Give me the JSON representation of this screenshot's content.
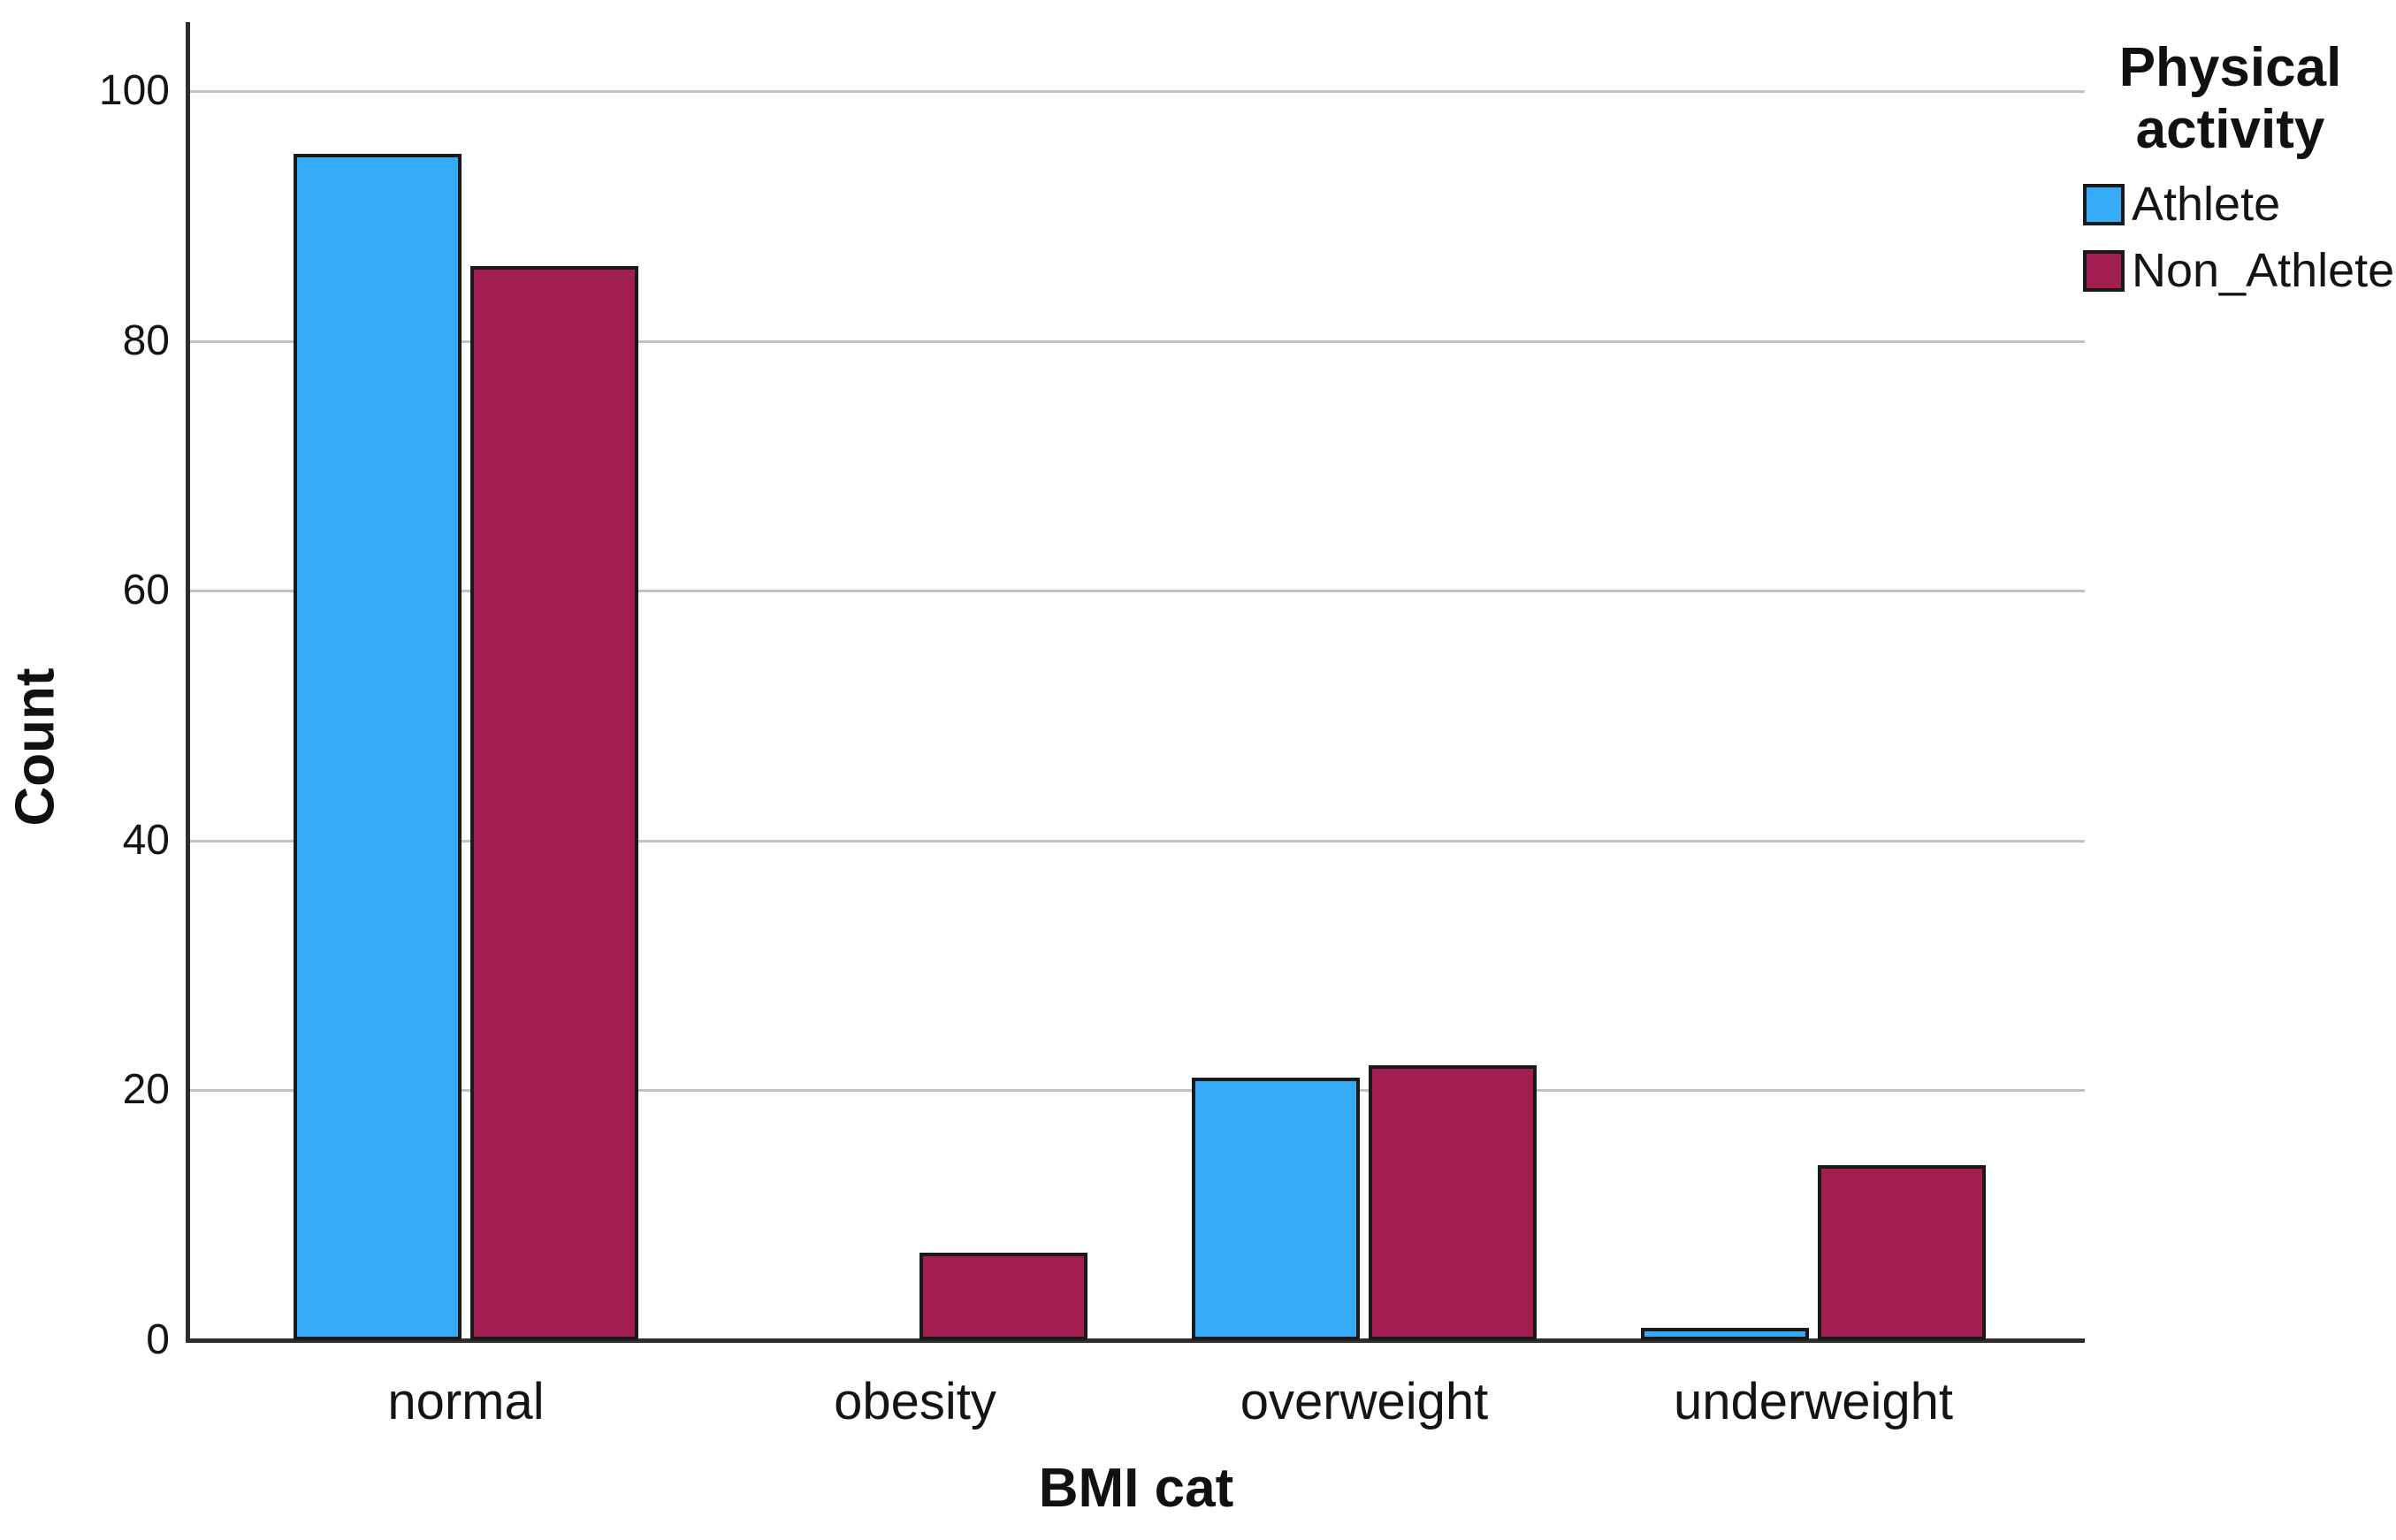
{
  "chart_data": {
    "type": "bar",
    "title": "",
    "categories": [
      "normal",
      "obesity",
      "overweight",
      "underweight"
    ],
    "series": [
      {
        "name": "Athlete",
        "color": "#35aaf7",
        "values": [
          95,
          0,
          21,
          1
        ]
      },
      {
        "name": "Non_Athlete",
        "color": "#a21d50",
        "values": [
          86,
          7,
          22,
          14
        ]
      }
    ],
    "xlabel": "BMI cat",
    "ylabel": "Count",
    "ylim": [
      0,
      100
    ],
    "yticks": [
      0,
      20,
      40,
      60,
      80,
      100
    ],
    "grid": true,
    "legend_title": "Physical activity",
    "legend_position": "top-right",
    "bar_outline_color": "#1a1a1a",
    "gridline_color": "#c2c2c2",
    "axis_color": "#2e2e2e",
    "background_color": "#ffffff"
  }
}
